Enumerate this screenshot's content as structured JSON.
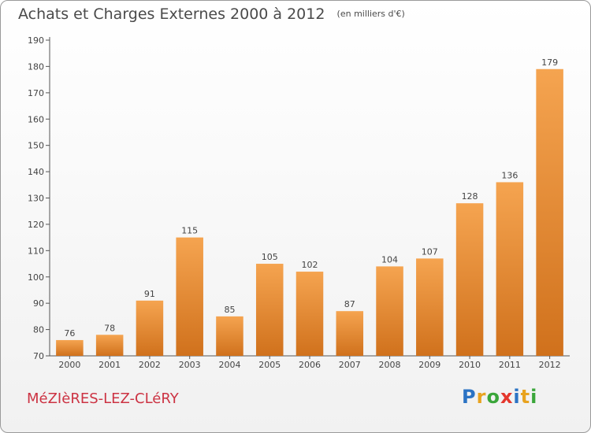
{
  "chart_data": {
    "type": "bar",
    "title": "Achats et Charges Externes 2000 à 2012",
    "subtitle": "(en milliers d'€)",
    "categories": [
      "2000",
      "2001",
      "2002",
      "2003",
      "2004",
      "2005",
      "2006",
      "2007",
      "2008",
      "2009",
      "2010",
      "2011",
      "2012"
    ],
    "values": [
      76,
      78,
      91,
      115,
      85,
      105,
      102,
      87,
      104,
      107,
      128,
      136,
      179
    ],
    "ylim": [
      70,
      190
    ],
    "yticks": [
      70,
      80,
      90,
      100,
      110,
      120,
      130,
      140,
      150,
      160,
      170,
      180,
      190
    ],
    "xlabel": "",
    "ylabel": "",
    "grid": false,
    "bar_color_top": "#f5a450",
    "bar_color_bottom": "#d0711c"
  },
  "footer": {
    "commune": "MéZIèRES-LEZ-CLéRY",
    "logo_letters": [
      "P",
      "r",
      "o",
      "x",
      "i",
      "t",
      "i"
    ],
    "logo_colors": [
      "#2b73c4",
      "#e8a31f",
      "#3aa63a",
      "#e4372d",
      "#2b73c4",
      "#e8a31f",
      "#3aa63a"
    ]
  }
}
